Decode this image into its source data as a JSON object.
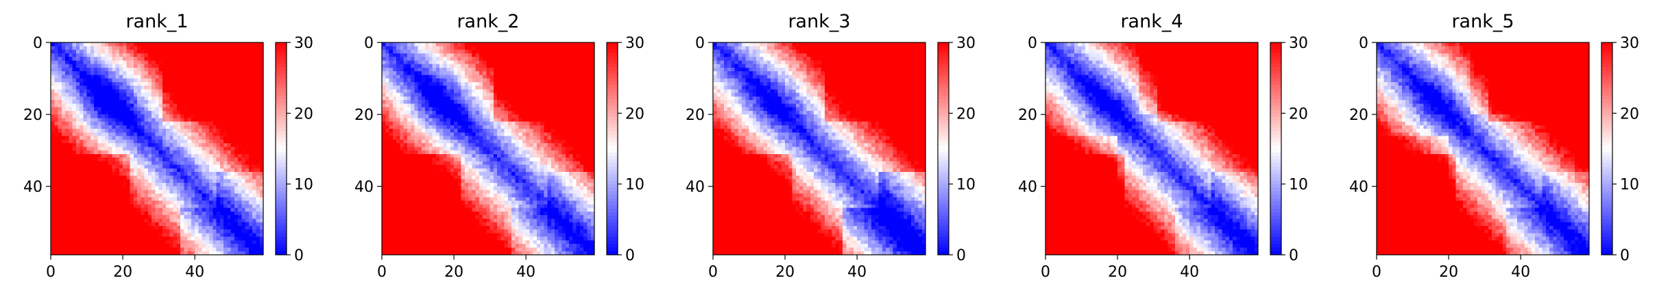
{
  "chart_data": [
    {
      "type": "heatmap",
      "title": "rank_1",
      "xlabel": "",
      "ylabel": "",
      "n": 59,
      "xlim": [
        0,
        59
      ],
      "ylim": [
        59,
        0
      ],
      "xticks": [
        0,
        20,
        40
      ],
      "yticks": [
        0,
        20,
        40
      ],
      "colorbar": {
        "ticks": [
          0,
          10,
          20,
          30
        ],
        "range": [
          0,
          30
        ],
        "colormap": "bwr"
      },
      "grid": false,
      "description": "pairwise values near 0 along the diagonal, rising to ~30 far from it; broader low band around rows/cols 10-25"
    },
    {
      "type": "heatmap",
      "title": "rank_2",
      "xlabel": "",
      "ylabel": "",
      "n": 59,
      "xlim": [
        0,
        59
      ],
      "ylim": [
        59,
        0
      ],
      "xticks": [
        0,
        20,
        40
      ],
      "yticks": [
        0,
        20,
        40
      ],
      "colorbar": {
        "ticks": [
          0,
          10,
          20,
          30
        ],
        "range": [
          0,
          30
        ],
        "colormap": "bwr"
      },
      "grid": false
    },
    {
      "type": "heatmap",
      "title": "rank_3",
      "xlabel": "",
      "ylabel": "",
      "n": 59,
      "xlim": [
        0,
        59
      ],
      "ylim": [
        59,
        0
      ],
      "xticks": [
        0,
        20,
        40
      ],
      "yticks": [
        0,
        20,
        40
      ],
      "colorbar": {
        "ticks": [
          0,
          10,
          20,
          30
        ],
        "range": [
          0,
          30
        ],
        "colormap": "bwr"
      },
      "grid": false
    },
    {
      "type": "heatmap",
      "title": "rank_4",
      "xlabel": "",
      "ylabel": "",
      "n": 59,
      "xlim": [
        0,
        59
      ],
      "ylim": [
        59,
        0
      ],
      "xticks": [
        0,
        20,
        40
      ],
      "yticks": [
        0,
        20,
        40
      ],
      "colorbar": {
        "ticks": [
          0,
          10,
          20,
          30
        ],
        "range": [
          0,
          30
        ],
        "colormap": "bwr"
      },
      "grid": false
    },
    {
      "type": "heatmap",
      "title": "rank_5",
      "xlabel": "",
      "ylabel": "",
      "n": 59,
      "xlim": [
        0,
        59
      ],
      "ylim": [
        59,
        0
      ],
      "xticks": [
        0,
        20,
        40
      ],
      "yticks": [
        0,
        20,
        40
      ],
      "colorbar": {
        "ticks": [
          0,
          10,
          20,
          30
        ],
        "range": [
          0,
          30
        ],
        "colormap": "bwr"
      },
      "grid": false
    }
  ],
  "colors": {
    "low": "#0000ff",
    "mid": "#ffffff",
    "high": "#ff0000"
  }
}
